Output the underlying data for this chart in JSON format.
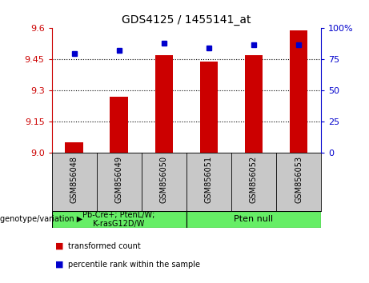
{
  "title": "GDS4125 / 1455141_at",
  "samples": [
    "GSM856048",
    "GSM856049",
    "GSM856050",
    "GSM856051",
    "GSM856052",
    "GSM856053"
  ],
  "red_values": [
    9.05,
    9.27,
    9.47,
    9.44,
    9.47,
    9.59
  ],
  "blue_values": [
    80,
    82,
    88,
    84,
    87,
    87
  ],
  "y_min": 9.0,
  "y_max": 9.6,
  "y_ticks": [
    9.0,
    9.15,
    9.3,
    9.45,
    9.6
  ],
  "y2_ticks": [
    0,
    25,
    50,
    75,
    100
  ],
  "bar_color": "#cc0000",
  "dot_color": "#0000cc",
  "group1_label": "Pb-Cre+; PtenL/W;\nK-rasG12D/W",
  "group2_label": "Pten null",
  "genotype_label": "genotype/variation",
  "legend_red": "transformed count",
  "legend_blue": "percentile rank within the sample",
  "background_color": "#ffffff",
  "plot_bg_color": "#ffffff",
  "group_bg_color": "#c8c8c8",
  "genotype_box_color": "#66ee66"
}
